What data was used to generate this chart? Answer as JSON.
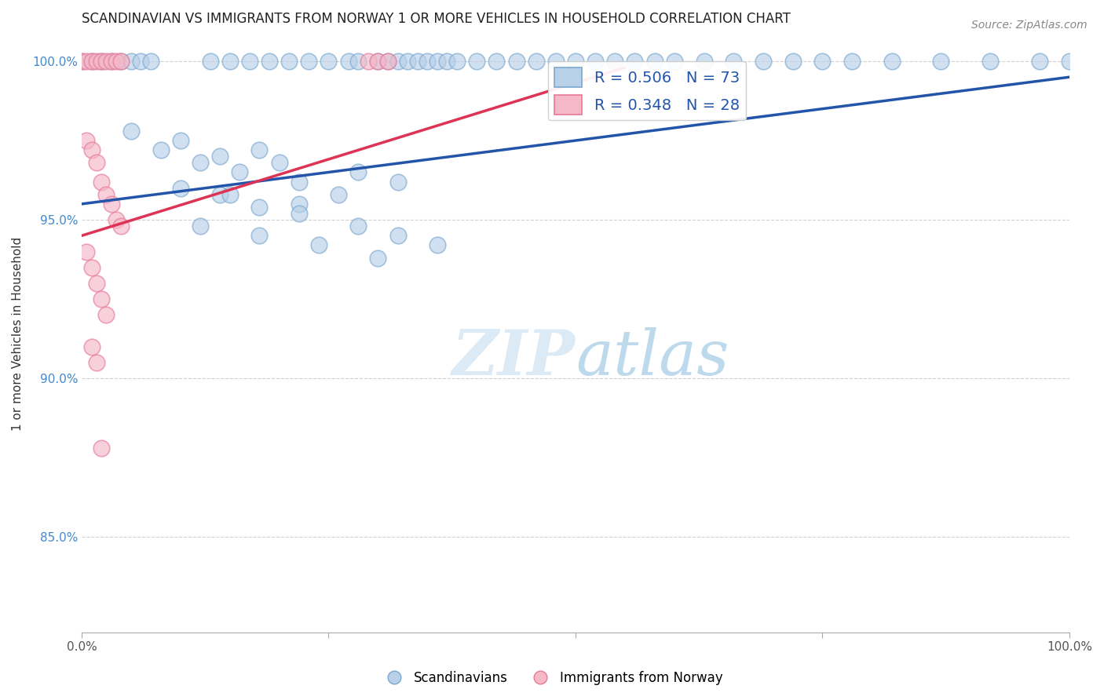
{
  "title": "SCANDINAVIAN VS IMMIGRANTS FROM NORWAY 1 OR MORE VEHICLES IN HOUSEHOLD CORRELATION CHART",
  "source_text": "Source: ZipAtlas.com",
  "ylabel": "1 or more Vehicles in Household",
  "xlim": [
    0.0,
    1.0
  ],
  "ylim": [
    0.82,
    1.008
  ],
  "xticks": [
    0.0,
    0.25,
    0.5,
    0.75,
    1.0
  ],
  "xticklabels": [
    "0.0%",
    "",
    "",
    "",
    "100.0%"
  ],
  "yticks": [
    0.85,
    0.9,
    0.95,
    1.0
  ],
  "yticklabels": [
    "85.0%",
    "90.0%",
    "95.0%",
    "100.0%"
  ],
  "blue_color": "#b8d0e8",
  "pink_color": "#f4b8c8",
  "blue_edge": "#7aa8d0",
  "pink_edge": "#e87898",
  "blue_line_color": "#2255aa",
  "pink_line_color": "#dd3355",
  "R_blue": 0.506,
  "N_blue": 73,
  "R_pink": 0.348,
  "N_pink": 28,
  "legend_labels": [
    "Scandinavians",
    "Immigrants from Norway"
  ],
  "blue_line_x": [
    0.0,
    1.0
  ],
  "blue_line_y": [
    0.955,
    0.995
  ],
  "pink_line_x": [
    0.0,
    0.55
  ],
  "pink_line_y": [
    0.945,
    0.998
  ],
  "blue_top_x": [
    0.0,
    0.01,
    0.02,
    0.03,
    0.04,
    0.05,
    0.06,
    0.07,
    0.13,
    0.15,
    0.17,
    0.19,
    0.21,
    0.23,
    0.25,
    0.27,
    0.28,
    0.3,
    0.31,
    0.32,
    0.33,
    0.34,
    0.35,
    0.36,
    0.37,
    0.38,
    0.4,
    0.42,
    0.44,
    0.46,
    0.48,
    0.5,
    0.52,
    0.54,
    0.56,
    0.58,
    0.6,
    0.63,
    0.66,
    0.69,
    0.72,
    0.75,
    0.78,
    0.82,
    0.87,
    0.92,
    0.97,
    1.0
  ],
  "blue_top_y": [
    1.0,
    1.0,
    1.0,
    1.0,
    1.0,
    1.0,
    1.0,
    1.0,
    1.0,
    1.0,
    1.0,
    1.0,
    1.0,
    1.0,
    1.0,
    1.0,
    1.0,
    1.0,
    1.0,
    1.0,
    1.0,
    1.0,
    1.0,
    1.0,
    1.0,
    1.0,
    1.0,
    1.0,
    1.0,
    1.0,
    1.0,
    1.0,
    1.0,
    1.0,
    1.0,
    1.0,
    1.0,
    1.0,
    1.0,
    1.0,
    1.0,
    1.0,
    1.0,
    1.0,
    1.0,
    1.0,
    1.0,
    1.0
  ],
  "blue_lower_x": [
    0.05,
    0.08,
    0.1,
    0.12,
    0.14,
    0.16,
    0.18,
    0.2,
    0.1,
    0.22,
    0.14,
    0.28,
    0.32,
    0.15,
    0.18,
    0.22,
    0.26,
    0.22,
    0.28,
    0.32,
    0.36,
    0.12,
    0.18,
    0.24,
    0.3
  ],
  "blue_lower_y": [
    0.978,
    0.972,
    0.975,
    0.968,
    0.97,
    0.965,
    0.972,
    0.968,
    0.96,
    0.962,
    0.958,
    0.965,
    0.962,
    0.958,
    0.954,
    0.955,
    0.958,
    0.952,
    0.948,
    0.945,
    0.942,
    0.948,
    0.945,
    0.942,
    0.938
  ],
  "pink_top_x": [
    0.0,
    0.005,
    0.01,
    0.015,
    0.02,
    0.025,
    0.03,
    0.035,
    0.04,
    0.29,
    0.3,
    0.31
  ],
  "pink_top_y": [
    1.0,
    1.0,
    1.0,
    1.0,
    1.0,
    1.0,
    1.0,
    1.0,
    1.0,
    1.0,
    1.0,
    1.0
  ],
  "pink_lower_x": [
    0.005,
    0.01,
    0.015,
    0.02,
    0.025,
    0.03,
    0.035,
    0.04,
    0.005,
    0.01,
    0.015,
    0.02,
    0.025,
    0.01,
    0.015,
    0.02
  ],
  "pink_lower_y": [
    0.975,
    0.972,
    0.968,
    0.962,
    0.958,
    0.955,
    0.95,
    0.948,
    0.94,
    0.935,
    0.93,
    0.925,
    0.92,
    0.91,
    0.905,
    0.878
  ]
}
